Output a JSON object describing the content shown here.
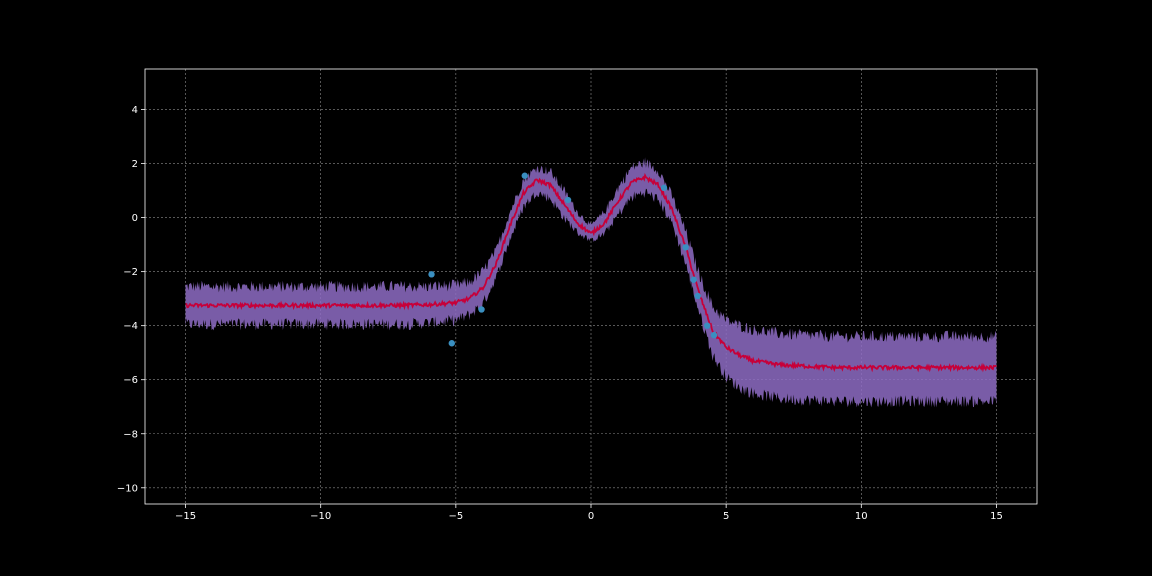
{
  "chart_data": {
    "type": "line",
    "title": "",
    "xlabel": "",
    "ylabel": "",
    "xlim": [
      -16.5,
      16.5
    ],
    "ylim": [
      -10.6,
      5.5
    ],
    "x_ticks": [
      -15,
      -10,
      -5,
      0,
      5,
      10,
      15
    ],
    "y_ticks": [
      -10,
      -8,
      -6,
      -4,
      -2,
      0,
      2,
      4
    ],
    "x_tick_labels": [
      "−15",
      "−10",
      "−5",
      "0",
      "5",
      "10",
      "15"
    ],
    "y_tick_labels": [
      "−10",
      "−8",
      "−6",
      "−4",
      "−2",
      "0",
      "2",
      "4"
    ],
    "grid": true,
    "background": "#000000",
    "axes_color": "#ffffff",
    "grid_color": "#b0b0b0",
    "series": [
      {
        "kind": "mean_line",
        "color": "#c70039",
        "x": [
          -15,
          -14,
          -13,
          -12,
          -11,
          -10,
          -9,
          -8,
          -7,
          -6,
          -5,
          -4.5,
          -4,
          -3.5,
          -3,
          -2.5,
          -2,
          -1.5,
          -1,
          -0.5,
          0,
          0.5,
          1,
          1.5,
          2,
          2.5,
          3,
          3.5,
          4,
          4.5,
          5,
          5.5,
          6,
          7,
          8,
          9,
          10,
          11,
          12,
          13,
          14,
          15
        ],
        "y": [
          -3.25,
          -3.25,
          -3.25,
          -3.25,
          -3.25,
          -3.25,
          -3.25,
          -3.25,
          -3.25,
          -3.22,
          -3.15,
          -3.0,
          -2.6,
          -1.7,
          -0.3,
          0.9,
          1.4,
          1.2,
          0.5,
          -0.2,
          -0.6,
          -0.2,
          0.6,
          1.3,
          1.5,
          1.2,
          0.3,
          -1.1,
          -2.8,
          -4.2,
          -4.8,
          -5.1,
          -5.3,
          -5.45,
          -5.5,
          -5.55,
          -5.55,
          -5.55,
          -5.55,
          -5.55,
          -5.55,
          -5.55
        ]
      },
      {
        "kind": "confidence_band",
        "color": "#8e6cc4",
        "x": [
          -15,
          -14,
          -13,
          -12,
          -11,
          -10,
          -9,
          -8,
          -7,
          -6,
          -5,
          -4.5,
          -4,
          -3.5,
          -3,
          -2.5,
          -2,
          -1.5,
          -1,
          -0.5,
          0,
          0.5,
          1,
          1.5,
          2,
          2.5,
          3,
          3.5,
          4,
          4.5,
          5,
          5.5,
          6,
          7,
          8,
          9,
          10,
          11,
          12,
          13,
          14,
          15
        ],
        "upper": [
          -2.55,
          -2.55,
          -2.55,
          -2.55,
          -2.55,
          -2.55,
          -2.55,
          -2.55,
          -2.55,
          -2.55,
          -2.5,
          -2.4,
          -2.0,
          -1.2,
          0.2,
          1.4,
          1.85,
          1.7,
          1.0,
          0.2,
          -0.3,
          0.2,
          1.1,
          1.85,
          2.05,
          1.75,
          0.8,
          -0.5,
          -2.1,
          -3.3,
          -3.8,
          -4.0,
          -4.15,
          -4.3,
          -4.35,
          -4.4,
          -4.4,
          -4.4,
          -4.4,
          -4.4,
          -4.4,
          -4.4
        ],
        "lower": [
          -3.95,
          -3.95,
          -3.95,
          -3.95,
          -3.95,
          -3.95,
          -3.95,
          -3.95,
          -3.95,
          -3.9,
          -3.8,
          -3.6,
          -3.2,
          -2.2,
          -0.8,
          0.4,
          0.95,
          0.7,
          0.0,
          -0.55,
          -0.85,
          -0.6,
          0.1,
          0.75,
          0.95,
          0.65,
          -0.2,
          -1.7,
          -3.5,
          -5.1,
          -5.9,
          -6.3,
          -6.5,
          -6.7,
          -6.75,
          -6.8,
          -6.8,
          -6.8,
          -6.8,
          -6.8,
          -6.8,
          -6.8
        ]
      },
      {
        "kind": "observations",
        "color": "#3a8fc0",
        "x": [
          -5.9,
          -5.15,
          -4.05,
          -2.45,
          -0.85,
          2.7,
          3.5,
          3.8,
          3.95,
          4.3,
          4.55
        ],
        "y": [
          -2.1,
          -4.65,
          -3.4,
          1.55,
          0.65,
          1.1,
          -1.1,
          -2.3,
          -2.9,
          -4.0,
          -4.35
        ]
      }
    ]
  }
}
